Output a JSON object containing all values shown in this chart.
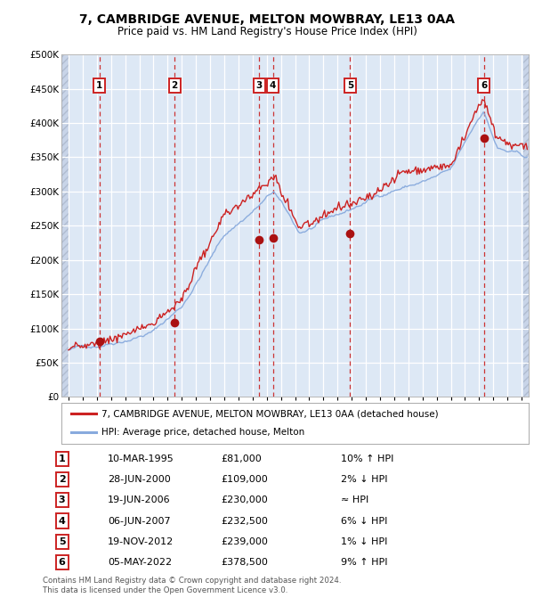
{
  "title": "7, CAMBRIDGE AVENUE, MELTON MOWBRAY, LE13 0AA",
  "subtitle": "Price paid vs. HM Land Registry's House Price Index (HPI)",
  "ylim": [
    0,
    500000
  ],
  "yticks": [
    0,
    50000,
    100000,
    150000,
    200000,
    250000,
    300000,
    350000,
    400000,
    450000,
    500000
  ],
  "ytick_labels": [
    "£0",
    "£50K",
    "£100K",
    "£150K",
    "£200K",
    "£250K",
    "£300K",
    "£350K",
    "£400K",
    "£450K",
    "£500K"
  ],
  "hpi_color": "#88aadd",
  "price_color": "#cc2222",
  "dot_color": "#aa1111",
  "bg_color": "#dde8f5",
  "hatch_bg": "#c8d4e8",
  "grid_color": "#ffffff",
  "vline_color": "#cc3333",
  "sale_dates_x": [
    1995.19,
    2000.49,
    2006.47,
    2007.43,
    2012.89,
    2022.34
  ],
  "sale_prices": [
    81000,
    109000,
    230000,
    232500,
    239000,
    378500
  ],
  "sale_labels": [
    "1",
    "2",
    "3",
    "4",
    "5",
    "6"
  ],
  "xmin": 1993.0,
  "xmax": 2025.5,
  "table_rows": [
    [
      "1",
      "10-MAR-1995",
      "£81,000",
      "10% ↑ HPI"
    ],
    [
      "2",
      "28-JUN-2000",
      "£109,000",
      "2% ↓ HPI"
    ],
    [
      "3",
      "19-JUN-2006",
      "£230,000",
      "≈ HPI"
    ],
    [
      "4",
      "06-JUN-2007",
      "£232,500",
      "6% ↓ HPI"
    ],
    [
      "5",
      "19-NOV-2012",
      "£239,000",
      "1% ↓ HPI"
    ],
    [
      "6",
      "05-MAY-2022",
      "£378,500",
      "9% ↑ HPI"
    ]
  ],
  "footer": "Contains HM Land Registry data © Crown copyright and database right 2024.\nThis data is licensed under the Open Government Licence v3.0.",
  "legend_price_label": "7, CAMBRIDGE AVENUE, MELTON MOWBRAY, LE13 0AA (detached house)",
  "legend_hpi_label": "HPI: Average price, detached house, Melton"
}
